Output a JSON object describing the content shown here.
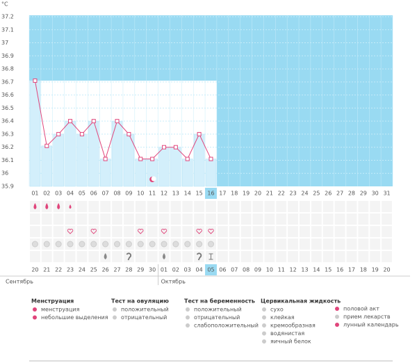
{
  "chart_data": {
    "type": "line",
    "y_unit": "°C",
    "categories": [
      "01",
      "02",
      "03",
      "04",
      "05",
      "06",
      "07",
      "08",
      "09",
      "10",
      "11",
      "12",
      "13",
      "14",
      "15",
      "16",
      "17",
      "18",
      "19",
      "20",
      "21",
      "22",
      "23",
      "24",
      "25",
      "26",
      "27",
      "28",
      "29",
      "30",
      "31"
    ],
    "values": [
      36.71,
      36.21,
      36.3,
      36.4,
      36.3,
      36.4,
      36.11,
      36.4,
      36.3,
      36.11,
      36.11,
      36.2,
      36.2,
      36.11,
      36.3,
      36.11,
      null,
      null,
      null,
      null,
      null,
      null,
      null,
      null,
      null,
      null,
      null,
      null,
      null,
      null,
      null
    ],
    "color": "#e0457b",
    "ylim": [
      35.9,
      37.2
    ],
    "yticks": [
      35.9,
      36,
      36.1,
      36.2,
      36.3,
      36.4,
      36.5,
      36.6,
      36.7,
      36.8,
      36.9,
      37,
      37.1,
      37.2
    ],
    "grid": true,
    "calendar_dates": [
      "20",
      "21",
      "22",
      "23",
      "24",
      "25",
      "26",
      "27",
      "28",
      "29",
      "30",
      "01",
      "02",
      "03",
      "04",
      "05",
      "06",
      "07",
      "08",
      "09",
      "10",
      "11",
      "12",
      "13",
      "14",
      "15",
      "16",
      "17",
      "18",
      "19",
      "20"
    ],
    "calendar_colors": [
      "#555",
      "#555",
      "#d0104c",
      "#d0104c",
      "#555",
      "#555",
      "#555",
      "#555",
      "#555",
      "#d0104c",
      "#d0104c",
      "#555",
      "#555",
      "#555",
      "#555",
      "#555",
      "#d0104c",
      "#d0104c",
      "#555",
      "#555",
      "#555",
      "#555",
      "#555",
      "#d0104c",
      "#d0104c",
      "#555",
      "#555",
      "#555",
      "#555",
      "#555",
      "#d0104c"
    ],
    "months": [
      "Сентябрь",
      "Октябрь"
    ]
  },
  "legend": [
    {
      "title": "Менструация",
      "items": [
        "менструация",
        "небольшие выделения"
      ]
    },
    {
      "title": "Тест на овуляцию",
      "items": [
        "положительный",
        "отрицательный"
      ]
    },
    {
      "title": "Тест на беременность",
      "items": [
        "положительный",
        "отрицательный",
        "слабоположительный"
      ]
    },
    {
      "title": "Цервикальная жидкость",
      "items": [
        "сухо",
        "клейкая",
        "кремообразная",
        "водянистая",
        "яичный белок"
      ]
    },
    {
      "title": "",
      "items": [
        "половой акт",
        "прием лекарств",
        "лунный календарь"
      ]
    }
  ]
}
